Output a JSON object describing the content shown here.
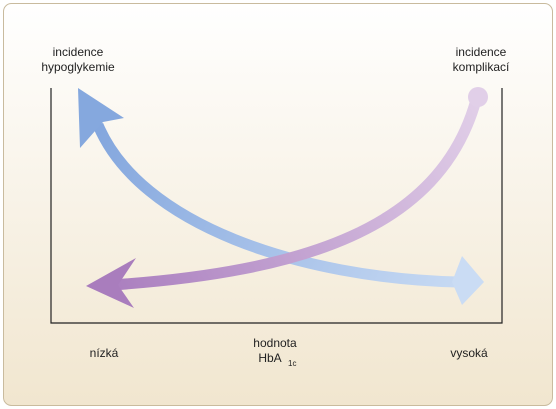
{
  "labels": {
    "left_axis": [
      "incidence",
      "hypoglykemie"
    ],
    "right_axis": [
      "incidence",
      "komplikací"
    ],
    "x_low": "nízká",
    "x_high": "vysoká",
    "x_title": {
      "line1": "hodnota",
      "base": "HbA",
      "subscript": "1c"
    }
  }
}
